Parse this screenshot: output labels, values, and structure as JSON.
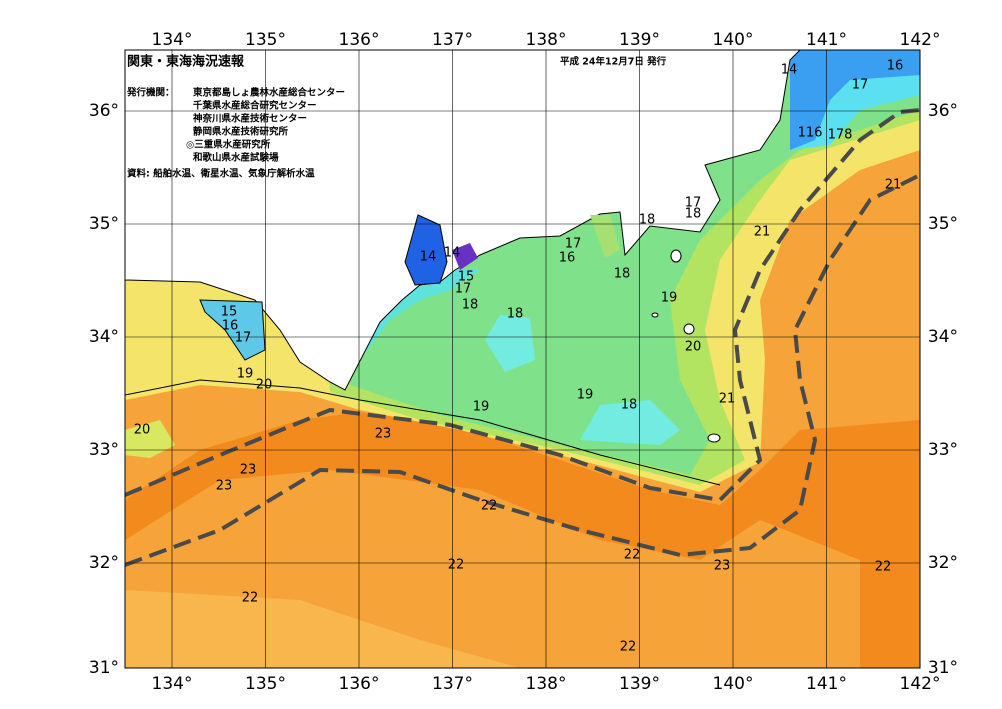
{
  "header": {
    "title": "関東・東海海況速報",
    "date": "平成 24年12月7日 発行",
    "issuer_label": "発行機関：",
    "issuers": [
      "東京都島しょ農林水産総合センター",
      "千葉県水産総合研究センター",
      "神奈川県水産技術センター",
      "静岡県水産技術研究所",
      "◎三重県水産研究所",
      "和歌山県水産試験場"
    ],
    "source": "資料: 船舶水温、衛星水温、気象庁解析水温"
  },
  "longitudes": [
    "134°",
    "135°",
    "136°",
    "137°",
    "138°",
    "139°",
    "140°",
    "141°",
    "142°"
  ],
  "latitudes": [
    "36°",
    "35°",
    "34°",
    "33°",
    "32°",
    "31°"
  ],
  "contour_labels": [
    "14",
    "16",
    "17",
    "116",
    "178",
    "21",
    "21",
    "17",
    "18",
    "18",
    "17",
    "16",
    "18",
    "19",
    "14",
    "14",
    "15",
    "17",
    "18",
    "18",
    "20",
    "21",
    "19",
    "18",
    "19",
    "15",
    "16",
    "17",
    "19",
    "20",
    "20",
    "23",
    "23",
    "23",
    "22",
    "22",
    "23",
    "22",
    "22",
    "22",
    "22"
  ]
}
